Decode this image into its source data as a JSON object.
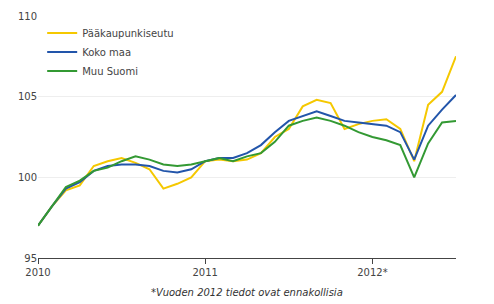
{
  "chart_data": {
    "type": "line",
    "categories": [
      "2010",
      null,
      null,
      null,
      null,
      null,
      null,
      null,
      null,
      null,
      null,
      null,
      "2011",
      null,
      null,
      null,
      null,
      null,
      null,
      null,
      null,
      null,
      null,
      null,
      "2012*",
      null,
      null,
      null,
      null,
      null,
      null
    ],
    "series": [
      {
        "name": "Pääkaupunkiseutu",
        "color": "#f5c800",
        "values": [
          97.0,
          98.2,
          99.2,
          99.5,
          100.7,
          101.0,
          101.2,
          100.9,
          100.5,
          99.3,
          99.6,
          100.0,
          101.0,
          101.1,
          101.0,
          101.1,
          101.5,
          102.5,
          103.0,
          104.4,
          104.8,
          104.6,
          103.0,
          103.3,
          103.5,
          103.6,
          103.0,
          101.0,
          104.5,
          105.3,
          107.5
        ]
      },
      {
        "name": "Koko maa",
        "color": "#2255aa",
        "values": [
          97.0,
          98.2,
          99.3,
          99.7,
          100.4,
          100.7,
          100.8,
          100.8,
          100.7,
          100.4,
          100.3,
          100.5,
          101.0,
          101.2,
          101.2,
          101.5,
          102.0,
          102.8,
          103.5,
          103.8,
          104.1,
          103.8,
          103.5,
          103.4,
          103.3,
          103.2,
          102.8,
          101.1,
          103.2,
          104.2,
          105.1
        ]
      },
      {
        "name": "Muu Suomi",
        "color": "#339933",
        "values": [
          97.0,
          98.2,
          99.4,
          99.8,
          100.4,
          100.6,
          101.0,
          101.3,
          101.1,
          100.8,
          100.7,
          100.8,
          101.0,
          101.2,
          101.0,
          101.3,
          101.5,
          102.2,
          103.2,
          103.5,
          103.7,
          103.5,
          103.2,
          102.8,
          102.5,
          102.3,
          102.0,
          100.0,
          102.1,
          103.4,
          103.5
        ]
      }
    ],
    "ylim": [
      95,
      110
    ],
    "yticks": [
      95,
      100,
      105,
      110
    ],
    "y2lim": [
      95,
      110
    ],
    "y2ticks": [
      95,
      100,
      105,
      110
    ],
    "grid": true,
    "legend": "upper left",
    "annotations": [
      "*Vuoden 2012 tiedot ovat ennakollisia"
    ]
  }
}
